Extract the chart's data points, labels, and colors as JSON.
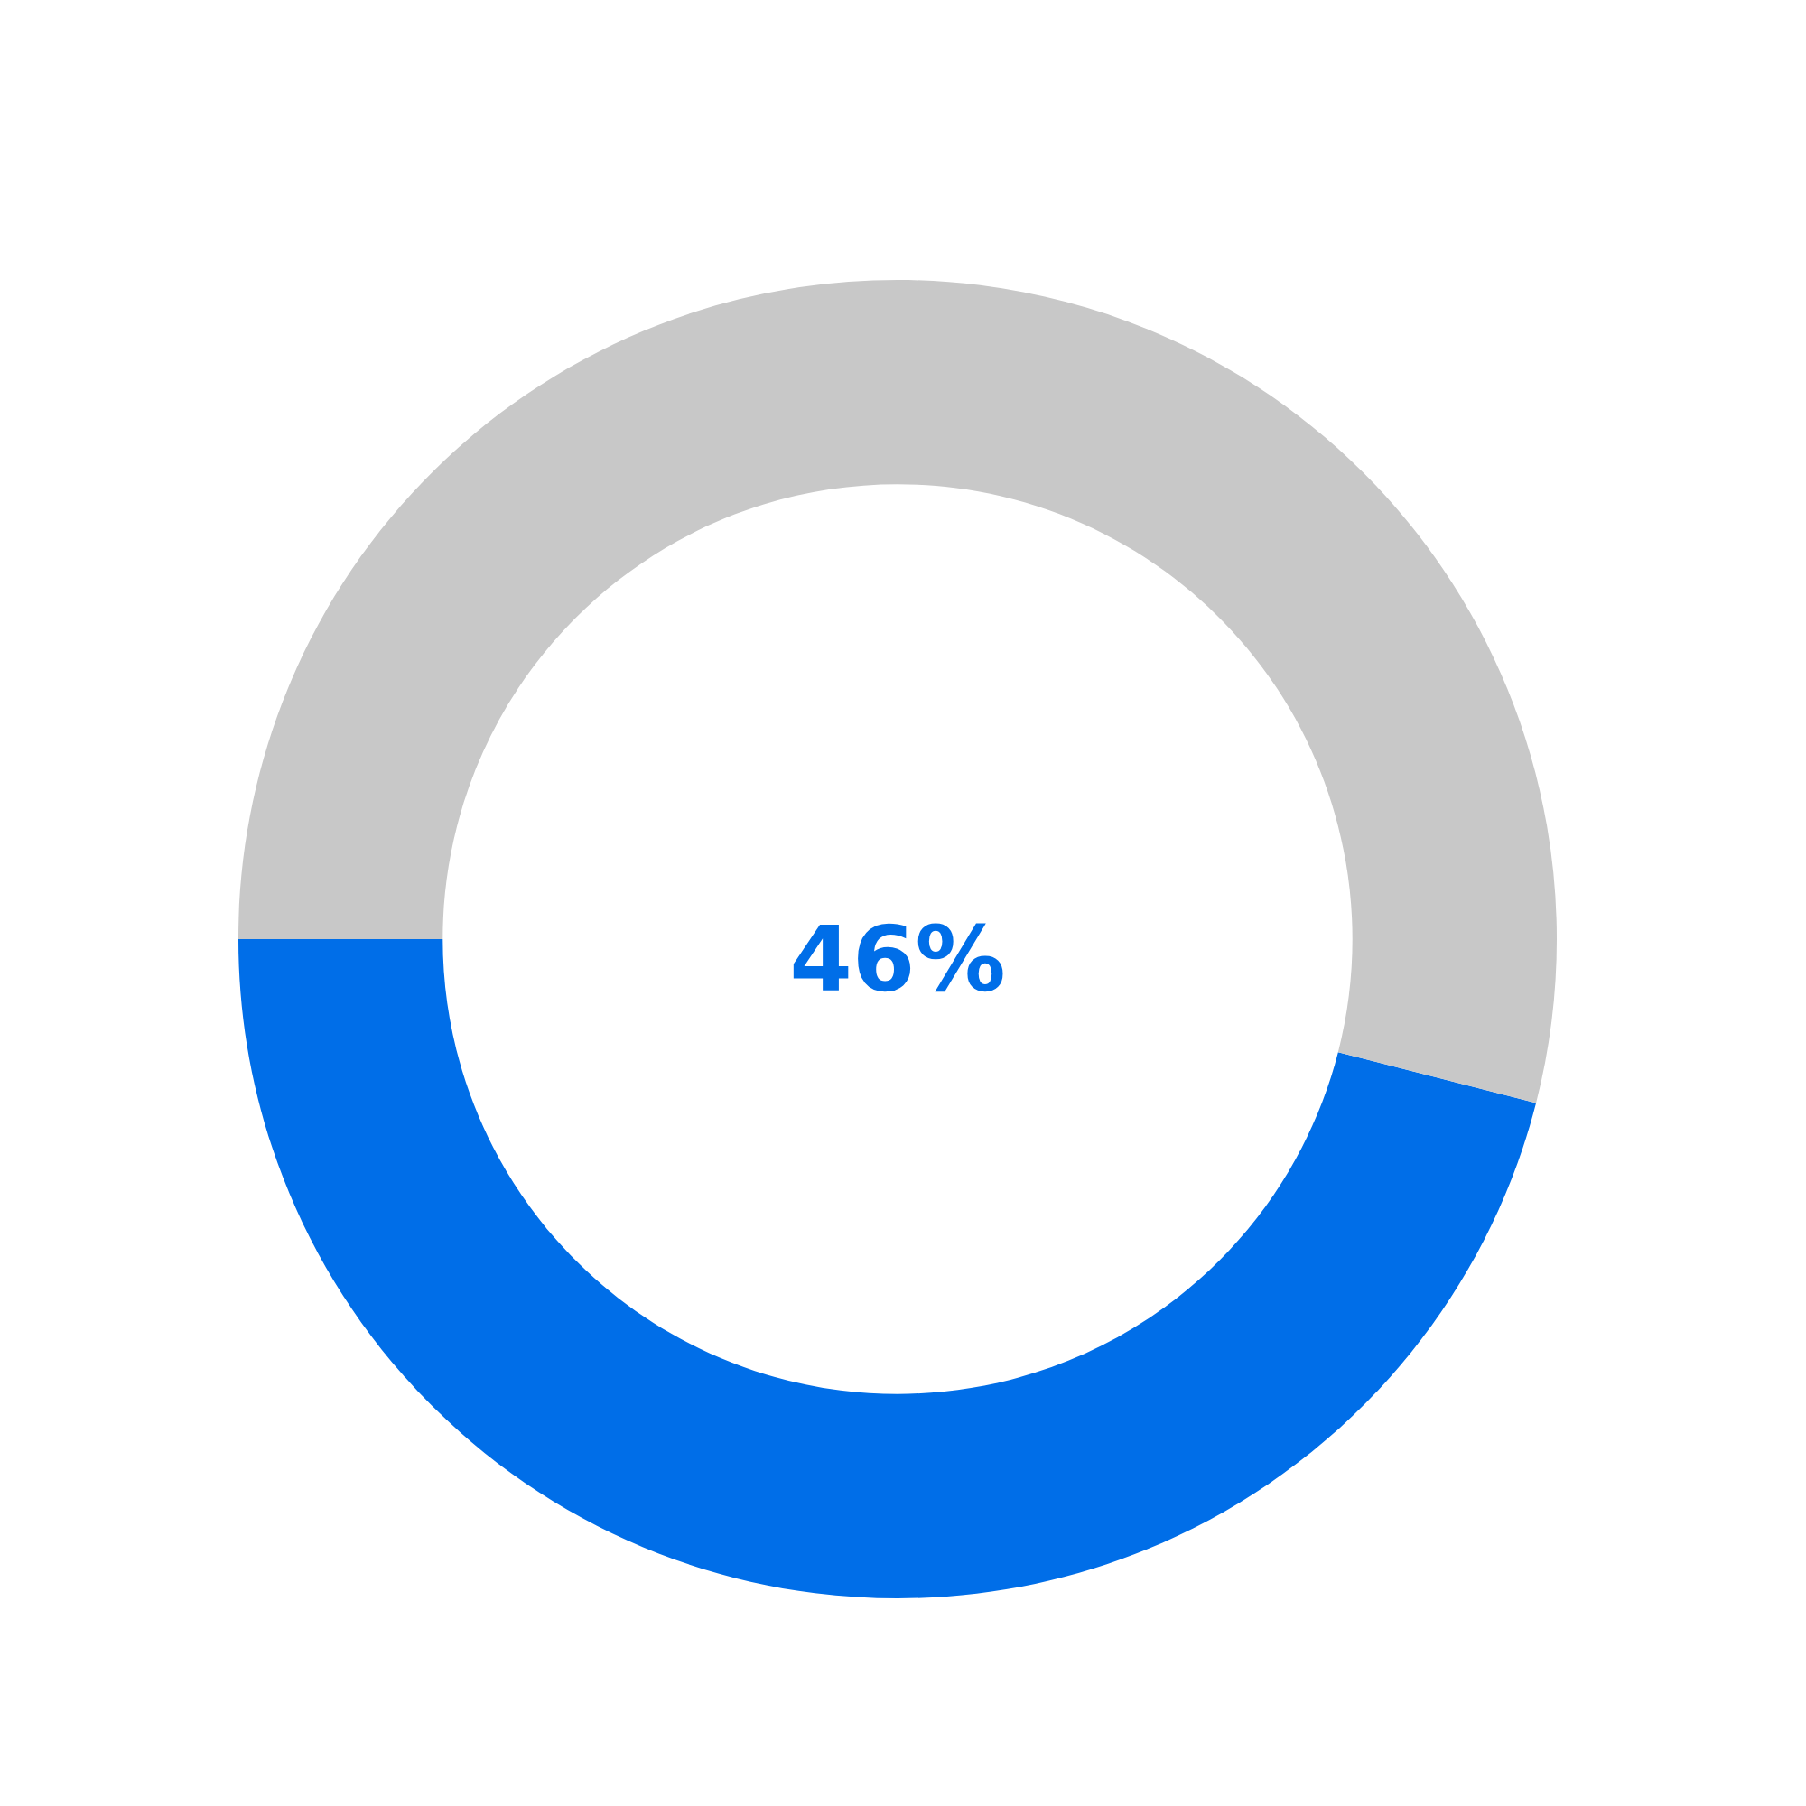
{
  "chart_data": {
    "type": "donut",
    "categories": [
      null,
      null
    ],
    "values": [
      46,
      54
    ],
    "colors": [
      "#006ee8",
      "#c8c8c8"
    ],
    "annotations": [
      "46%"
    ]
  }
}
